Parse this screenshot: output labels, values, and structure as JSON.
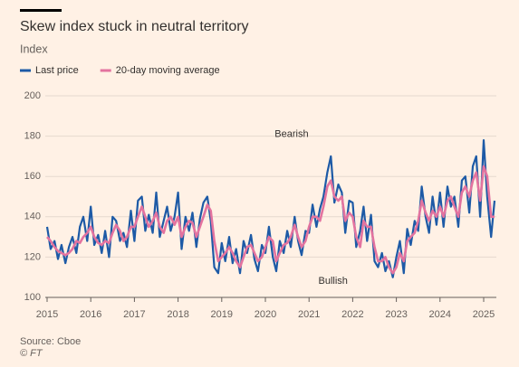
{
  "chart_data": {
    "type": "line",
    "title": "Skew index stuck in neutral territory",
    "subtitle": "Index",
    "source": "Source: Cboe",
    "credit": "© FT",
    "annotations": [
      {
        "text": "Bearish",
        "x": 2020.6,
        "y": 181
      },
      {
        "text": "Bullish",
        "x": 2021.55,
        "y": 108
      }
    ],
    "x": [
      2015.0,
      2015.08,
      2015.17,
      2015.25,
      2015.33,
      2015.42,
      2015.5,
      2015.58,
      2015.67,
      2015.75,
      2015.83,
      2015.92,
      2016.0,
      2016.08,
      2016.17,
      2016.25,
      2016.33,
      2016.42,
      2016.5,
      2016.58,
      2016.67,
      2016.75,
      2016.83,
      2016.92,
      2017.0,
      2017.08,
      2017.17,
      2017.25,
      2017.33,
      2017.42,
      2017.5,
      2017.58,
      2017.67,
      2017.75,
      2017.83,
      2017.92,
      2018.0,
      2018.08,
      2018.17,
      2018.25,
      2018.33,
      2018.42,
      2018.5,
      2018.58,
      2018.67,
      2018.75,
      2018.83,
      2018.92,
      2019.0,
      2019.08,
      2019.17,
      2019.25,
      2019.33,
      2019.42,
      2019.5,
      2019.58,
      2019.67,
      2019.75,
      2019.83,
      2019.92,
      2020.0,
      2020.08,
      2020.17,
      2020.25,
      2020.33,
      2020.42,
      2020.5,
      2020.58,
      2020.67,
      2020.75,
      2020.83,
      2020.92,
      2021.0,
      2021.08,
      2021.17,
      2021.25,
      2021.33,
      2021.42,
      2021.5,
      2021.58,
      2021.67,
      2021.75,
      2021.83,
      2021.92,
      2022.0,
      2022.08,
      2022.17,
      2022.25,
      2022.33,
      2022.42,
      2022.5,
      2022.58,
      2022.67,
      2022.75,
      2022.83,
      2022.92,
      2023.0,
      2023.08,
      2023.17,
      2023.25,
      2023.33,
      2023.42,
      2023.5,
      2023.58,
      2023.67,
      2023.75,
      2023.83,
      2023.92,
      2024.0,
      2024.08,
      2024.17,
      2024.25,
      2024.33,
      2024.42,
      2024.5,
      2024.58,
      2024.67,
      2024.75,
      2024.83,
      2024.92,
      2025.0,
      2025.08,
      2025.17,
      2025.25
    ],
    "series": [
      {
        "name": "Last price",
        "color": "#1d5aa6",
        "width": 2.2,
        "values": [
          135,
          124,
          128,
          119,
          126,
          117,
          125,
          130,
          122,
          135,
          140,
          128,
          145,
          126,
          131,
          122,
          133,
          120,
          140,
          138,
          128,
          132,
          125,
          143,
          128,
          148,
          150,
          133,
          141,
          132,
          152,
          130,
          138,
          145,
          133,
          140,
          152,
          124,
          140,
          133,
          142,
          125,
          139,
          147,
          150,
          138,
          115,
          112,
          127,
          118,
          130,
          117,
          124,
          112,
          128,
          122,
          131,
          119,
          113,
          126,
          122,
          135,
          120,
          113,
          128,
          122,
          133,
          125,
          140,
          128,
          121,
          133,
          132,
          146,
          135,
          144,
          150,
          162,
          170,
          147,
          156,
          152,
          132,
          148,
          147,
          125,
          133,
          145,
          128,
          141,
          118,
          115,
          122,
          113,
          118,
          110,
          120,
          128,
          112,
          134,
          126,
          138,
          133,
          155,
          140,
          132,
          150,
          136,
          152,
          135,
          155,
          145,
          150,
          135,
          158,
          160,
          142,
          165,
          170,
          140,
          178,
          150,
          130,
          148
        ]
      },
      {
        "name": "20-day moving average",
        "color": "#e3739f",
        "width": 2.6,
        "values": [
          130,
          128,
          125,
          123,
          122,
          121,
          122,
          124,
          128,
          127,
          130,
          132,
          135,
          130,
          127,
          126,
          128,
          127,
          132,
          136,
          133,
          128,
          130,
          135,
          135,
          140,
          145,
          140,
          135,
          138,
          142,
          135,
          132,
          138,
          140,
          136,
          140,
          130,
          135,
          138,
          137,
          130,
          135,
          140,
          146,
          143,
          128,
          118,
          120,
          122,
          125,
          122,
          118,
          115,
          120,
          125,
          126,
          122,
          118,
          120,
          125,
          130,
          128,
          118,
          122,
          126,
          127,
          130,
          136,
          130,
          125,
          128,
          135,
          140,
          140,
          138,
          145,
          155,
          158,
          150,
          148,
          150,
          138,
          142,
          140,
          130,
          125,
          138,
          135,
          135,
          125,
          118,
          118,
          120,
          115,
          112,
          115,
          122,
          118,
          128,
          130,
          132,
          138,
          148,
          142,
          138,
          143,
          140,
          145,
          140,
          148,
          150,
          145,
          140,
          152,
          155,
          150,
          158,
          162,
          148,
          165,
          160,
          140,
          140
        ]
      }
    ],
    "xlim": [
      2015,
      2025.35
    ],
    "xticks": [
      2015,
      2016,
      2017,
      2018,
      2019,
      2020,
      2021,
      2022,
      2023,
      2024,
      2025
    ],
    "ylim": [
      100,
      200
    ],
    "yticks": [
      100,
      120,
      140,
      160,
      180,
      200
    ],
    "grid": true
  }
}
